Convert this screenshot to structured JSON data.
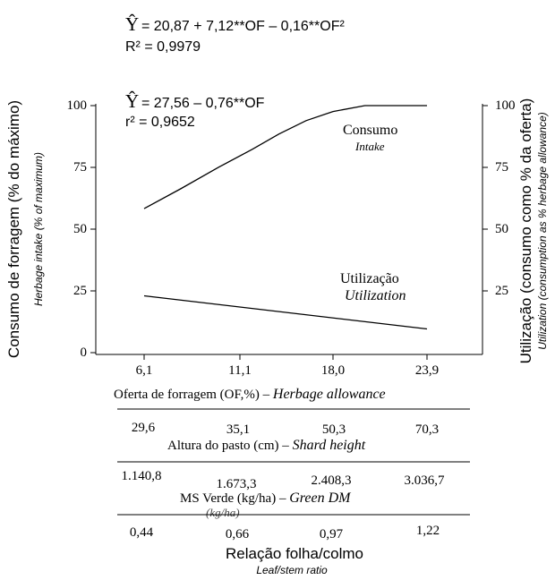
{
  "chart_data": {
    "type": "line",
    "equations": {
      "consumo": {
        "yhat": "Ŷ",
        "formula": " = 20,87 + 7,12**OF – 0,16**OF²",
        "r2": "R² = 0,9979"
      },
      "utilizacao": {
        "yhat": "Ŷ",
        "formula": " = 27,56 – 0,76**OF",
        "r2": "r² = 0,9652"
      }
    },
    "y_left": {
      "label": "Consumo de forragem (% do máximo)",
      "label_en": "Herbage intake (% of maximum)",
      "ticks": [
        "100",
        "75",
        "50",
        "25",
        "0"
      ],
      "ylim": [
        0,
        100
      ]
    },
    "y_right": {
      "label": "Utilização (consumo como % da oferta)",
      "label_en": "Utilization (consumption as % herbage allowance)",
      "ticks": [
        "100",
        "75",
        "50",
        "25"
      ]
    },
    "x_axis": {
      "ticks": [
        "6,1",
        "11,1",
        "18,0",
        "23,9"
      ],
      "label": "Oferta de forragem (OF,%)",
      "label_sep": " – ",
      "label_en": "Herbage allowance",
      "xlim": [
        6.1,
        23.9
      ]
    },
    "secondary_axes": [
      {
        "values": [
          "29,6",
          "35,1",
          "50,3",
          "70,3"
        ],
        "label": "Altura do pasto (cm) – ",
        "label_en": "Shard height"
      },
      {
        "values": [
          "1.140,8",
          "1.673,3",
          "2.408,3",
          "3.036,7"
        ],
        "label": "MS Verde (kg/ha) – ",
        "label_en": "Green DM",
        "note": "(kg/ha)"
      }
    ],
    "bottom_axis": {
      "values": [
        "0,44",
        "0,66",
        "0,97",
        "1,22"
      ],
      "label": "Relação folha/colmo",
      "label_en": "Leaf/stem ratio"
    },
    "series": [
      {
        "name": "Consumo",
        "name_en": "Intake",
        "x": [
          6.1,
          8.0,
          10.0,
          12.0,
          14.0,
          16.0,
          18.0,
          20.0,
          21.5,
          23.9
        ],
        "values": [
          58.3,
          66.3,
          75.1,
          82.3,
          88.5,
          93.9,
          97.6,
          100.0,
          100.0,
          100.0
        ]
      },
      {
        "name": "Utilização",
        "name_en": "Utilization",
        "x": [
          6.1,
          23.9
        ],
        "values": [
          23.0,
          9.6
        ]
      }
    ]
  }
}
